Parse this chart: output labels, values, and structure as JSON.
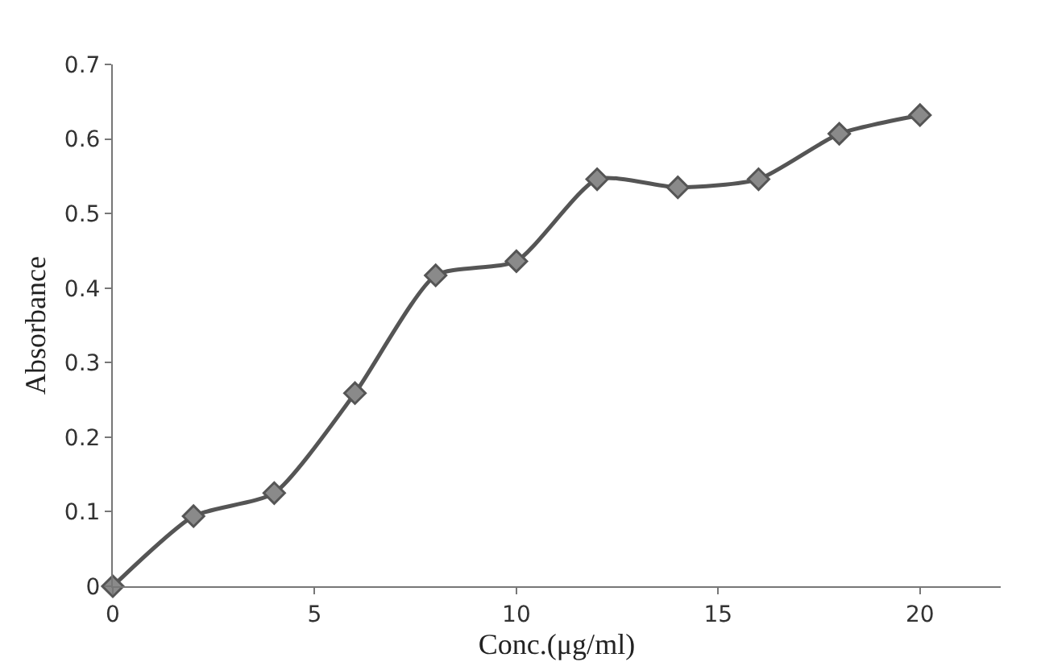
{
  "chart_data": {
    "type": "line",
    "xlabel": "Conc.(μg/ml)",
    "ylabel": "Absorbance",
    "x": [
      0,
      2,
      4,
      6,
      8,
      10,
      12,
      14,
      16,
      18,
      20
    ],
    "series": [
      {
        "color": "#555555",
        "values": [
          0,
          0.094,
          0.125,
          0.259,
          0.417,
          0.436,
          0.546,
          0.535,
          0.546,
          0.607,
          0.632
        ]
      }
    ],
    "xlim": [
      0,
      22
    ],
    "xticks": [
      0,
      5,
      10,
      15,
      20
    ],
    "ylim": [
      0,
      0.7
    ],
    "yticks": [
      0,
      0.1,
      0.2,
      0.3,
      0.4,
      0.5,
      0.6,
      0.7
    ],
    "marker": "diamond",
    "line_style": "solid",
    "legend": false
  }
}
